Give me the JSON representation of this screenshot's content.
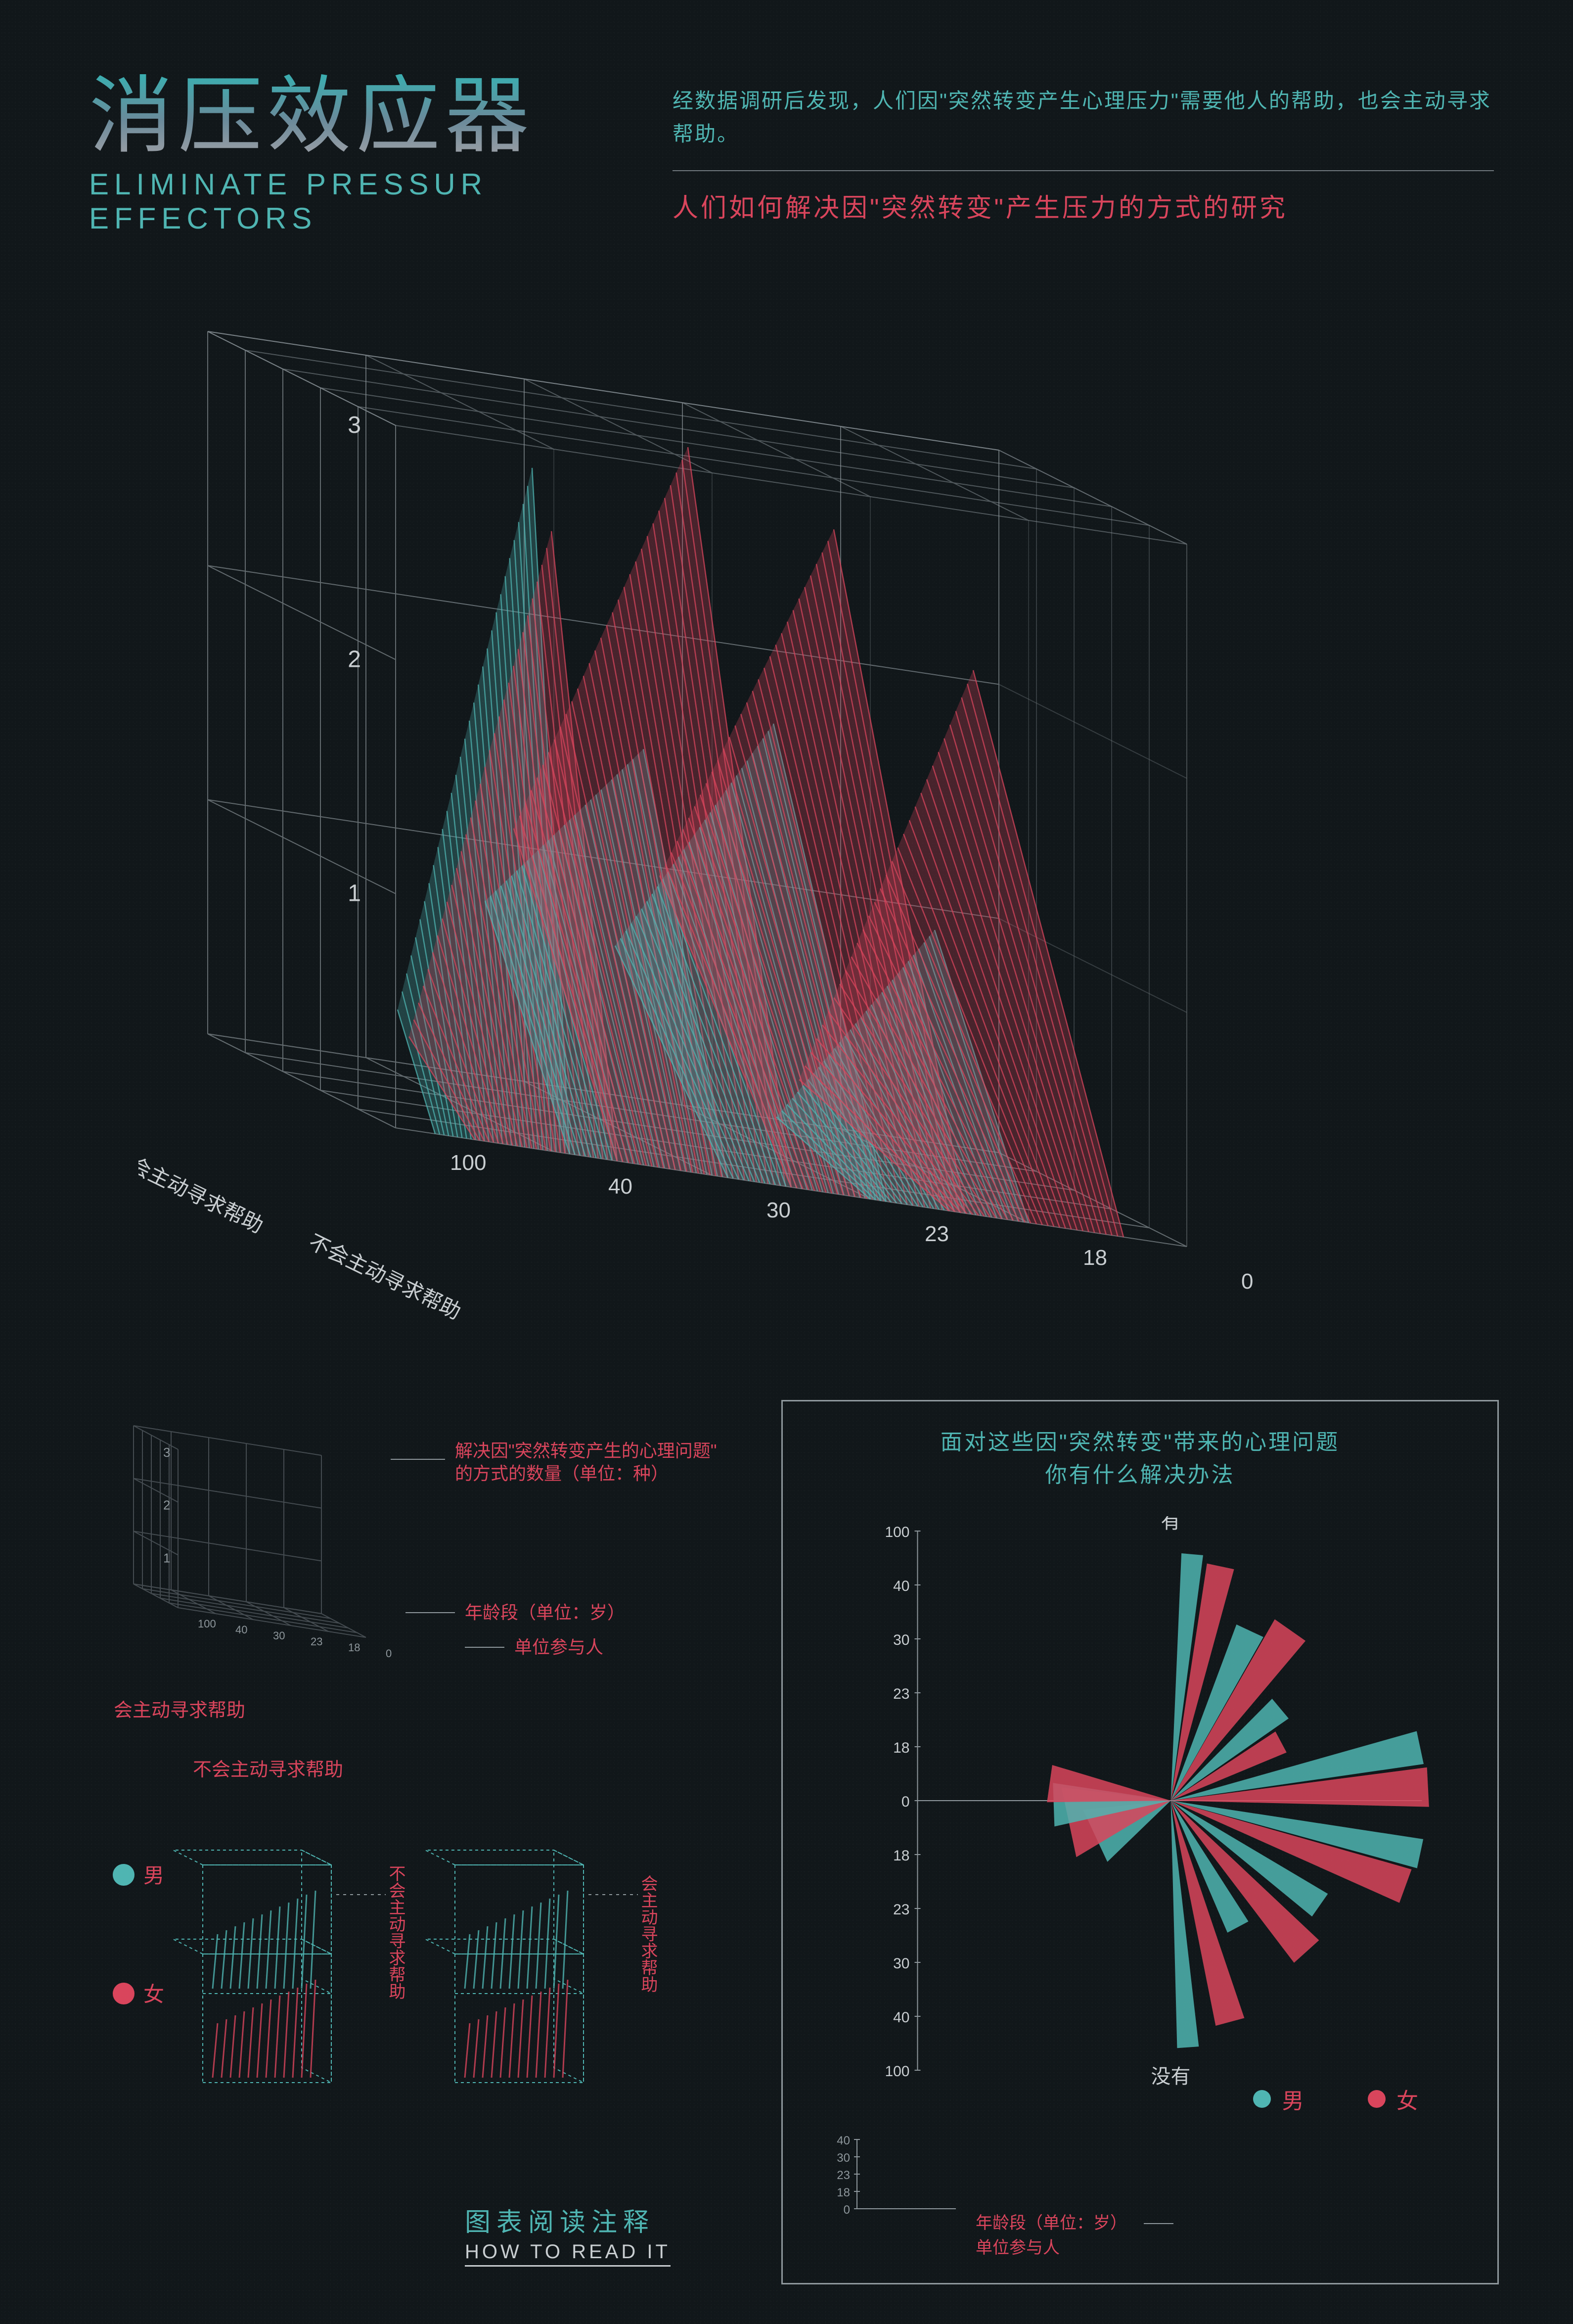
{
  "colors": {
    "bg": "#11171a",
    "teal": "#4fb5b2",
    "crimson": "#d9455c",
    "grid": "#8e979c",
    "grid_dim": "#5a6268",
    "white": "#c9ced1"
  },
  "header": {
    "title_cn": "消压效应器",
    "title_en": "ELIMINATE PRESSUR EFFECTORS",
    "intro_top": "经数据调研后发现，人们因\"突然转变产生心理压力\"需要他人的帮助，也会主动寻求帮助。",
    "intro_mid": "人们如何解决因\"突然转变\"产生压力的方式的研究"
  },
  "main_cube": {
    "z_ticks": [
      1,
      2,
      3
    ],
    "age_ticks": [
      0,
      18,
      23,
      30,
      40,
      100
    ],
    "depth_labels": [
      "会主动寻求帮助",
      "不会主动寻求帮助"
    ],
    "grid_segments": 5
  },
  "howto": {
    "z_desc": "解决因\"突然转变产生的心理问题\"的方式的数量（单位：种）",
    "age_desc": "年龄段（单位：岁）",
    "unit_desc": "单位参与人",
    "depth_front": "会主动寻求帮助",
    "depth_back": "不会主动寻求帮助",
    "gender_male": "男",
    "gender_female": "女",
    "mini_front": "不会主动寻求帮助",
    "mini_back": "会主动寻求帮助",
    "title_cn": "图表阅读注释",
    "title_en": "HOW TO READ IT"
  },
  "right_chart": {
    "title_l1": "面对这些因\"突然转变\"带来的心理问题",
    "title_l2": "你有什么解决办法",
    "top_label": "有",
    "bottom_label": "没有",
    "y_ticks_top": [
      100,
      40,
      30,
      23,
      18,
      0
    ],
    "y_ticks_bottom": [
      18,
      23,
      30,
      40,
      100
    ],
    "legend_male": "男",
    "legend_female": "女",
    "mini_ticks": [
      40,
      30,
      23,
      18,
      0
    ],
    "mini_age_desc": "年龄段（单位：岁）",
    "mini_unit_desc": "单位参与人",
    "fan_rays": [
      {
        "color": "#4fb5b2",
        "angle": -85,
        "len": 0.95,
        "w": 22
      },
      {
        "color": "#d9455c",
        "angle": -78,
        "len": 0.92,
        "w": 28
      },
      {
        "color": "#4fb5b2",
        "angle": -65,
        "len": 0.72,
        "w": 30
      },
      {
        "color": "#d9455c",
        "angle": -55,
        "len": 0.8,
        "w": 38
      },
      {
        "color": "#4fb5b2",
        "angle": -40,
        "len": 0.55,
        "w": 26
      },
      {
        "color": "#d9455c",
        "angle": -28,
        "len": 0.48,
        "w": 24
      },
      {
        "color": "#4fb5b2",
        "angle": -12,
        "len": 0.98,
        "w": 34
      },
      {
        "color": "#d9455c",
        "angle": -3,
        "len": 0.99,
        "w": 40
      },
      {
        "color": "#4fb5b2",
        "angle": 155,
        "len": 0.32,
        "w": 58
      },
      {
        "color": "#d9455c",
        "angle": 168,
        "len": 0.4,
        "w": 72
      },
      {
        "color": "#4fb5b2",
        "angle": 178,
        "len": 0.45,
        "w": 44
      },
      {
        "color": "#d9455c",
        "angle": 188,
        "len": 0.47,
        "w": 38
      },
      {
        "color": "#4fb5b2",
        "angle": 12,
        "len": 0.98,
        "w": 30
      },
      {
        "color": "#d9455c",
        "angle": 20,
        "len": 0.96,
        "w": 36
      },
      {
        "color": "#4fb5b2",
        "angle": 35,
        "len": 0.7,
        "w": 28
      },
      {
        "color": "#d9455c",
        "angle": 48,
        "len": 0.78,
        "w": 34
      },
      {
        "color": "#4fb5b2",
        "angle": 62,
        "len": 0.55,
        "w": 24
      },
      {
        "color": "#d9455c",
        "angle": 75,
        "len": 0.88,
        "w": 30
      },
      {
        "color": "#4fb5b2",
        "angle": 86,
        "len": 0.95,
        "w": 22
      }
    ]
  }
}
